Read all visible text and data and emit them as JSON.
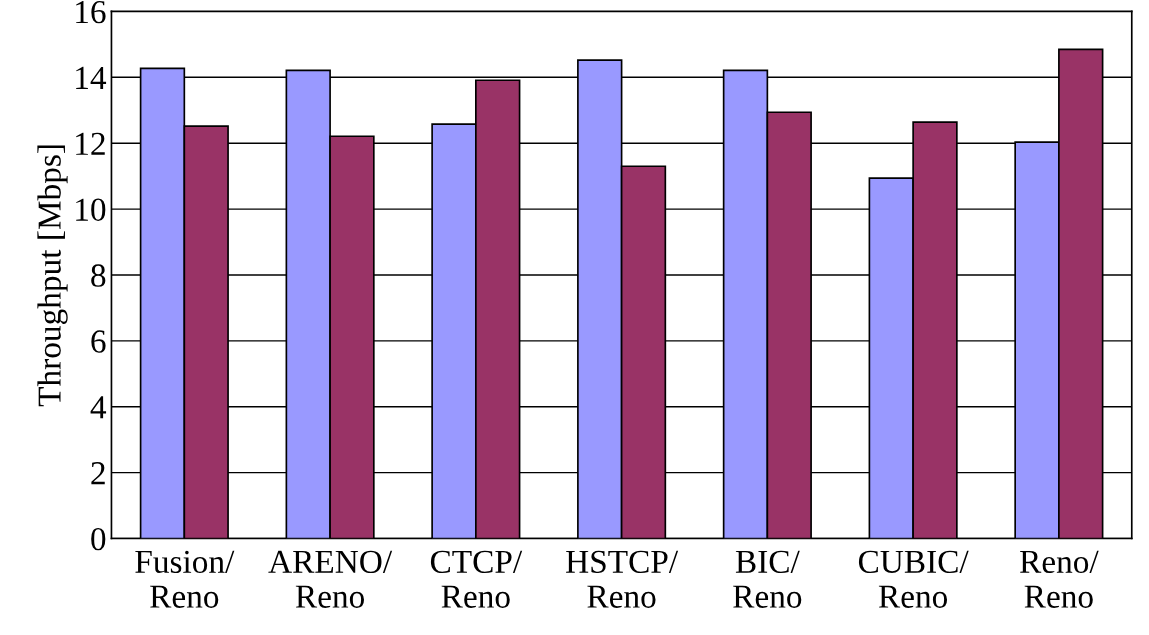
{
  "chart_data": {
    "type": "bar",
    "ylabel": "Throughput [Mbps]",
    "categories": [
      "Fusion/\nReno",
      "ARENO/\nReno",
      "CTCP/\nReno",
      "HSTCP/\nReno",
      "BIC/\nReno",
      "CUBIC/\nReno",
      "Reno/\nReno"
    ],
    "series": [
      {
        "color": "#9999ff",
        "values": [
          14.27,
          14.21,
          12.58,
          14.52,
          14.21,
          10.94,
          12.03
        ]
      },
      {
        "color": "#993366",
        "values": [
          12.52,
          12.21,
          13.91,
          11.3,
          12.94,
          12.64,
          14.85
        ]
      }
    ],
    "ylim": [
      0,
      16
    ],
    "yticks": [
      0,
      2,
      4,
      6,
      8,
      10,
      12,
      14,
      16
    ],
    "grid": "y"
  }
}
